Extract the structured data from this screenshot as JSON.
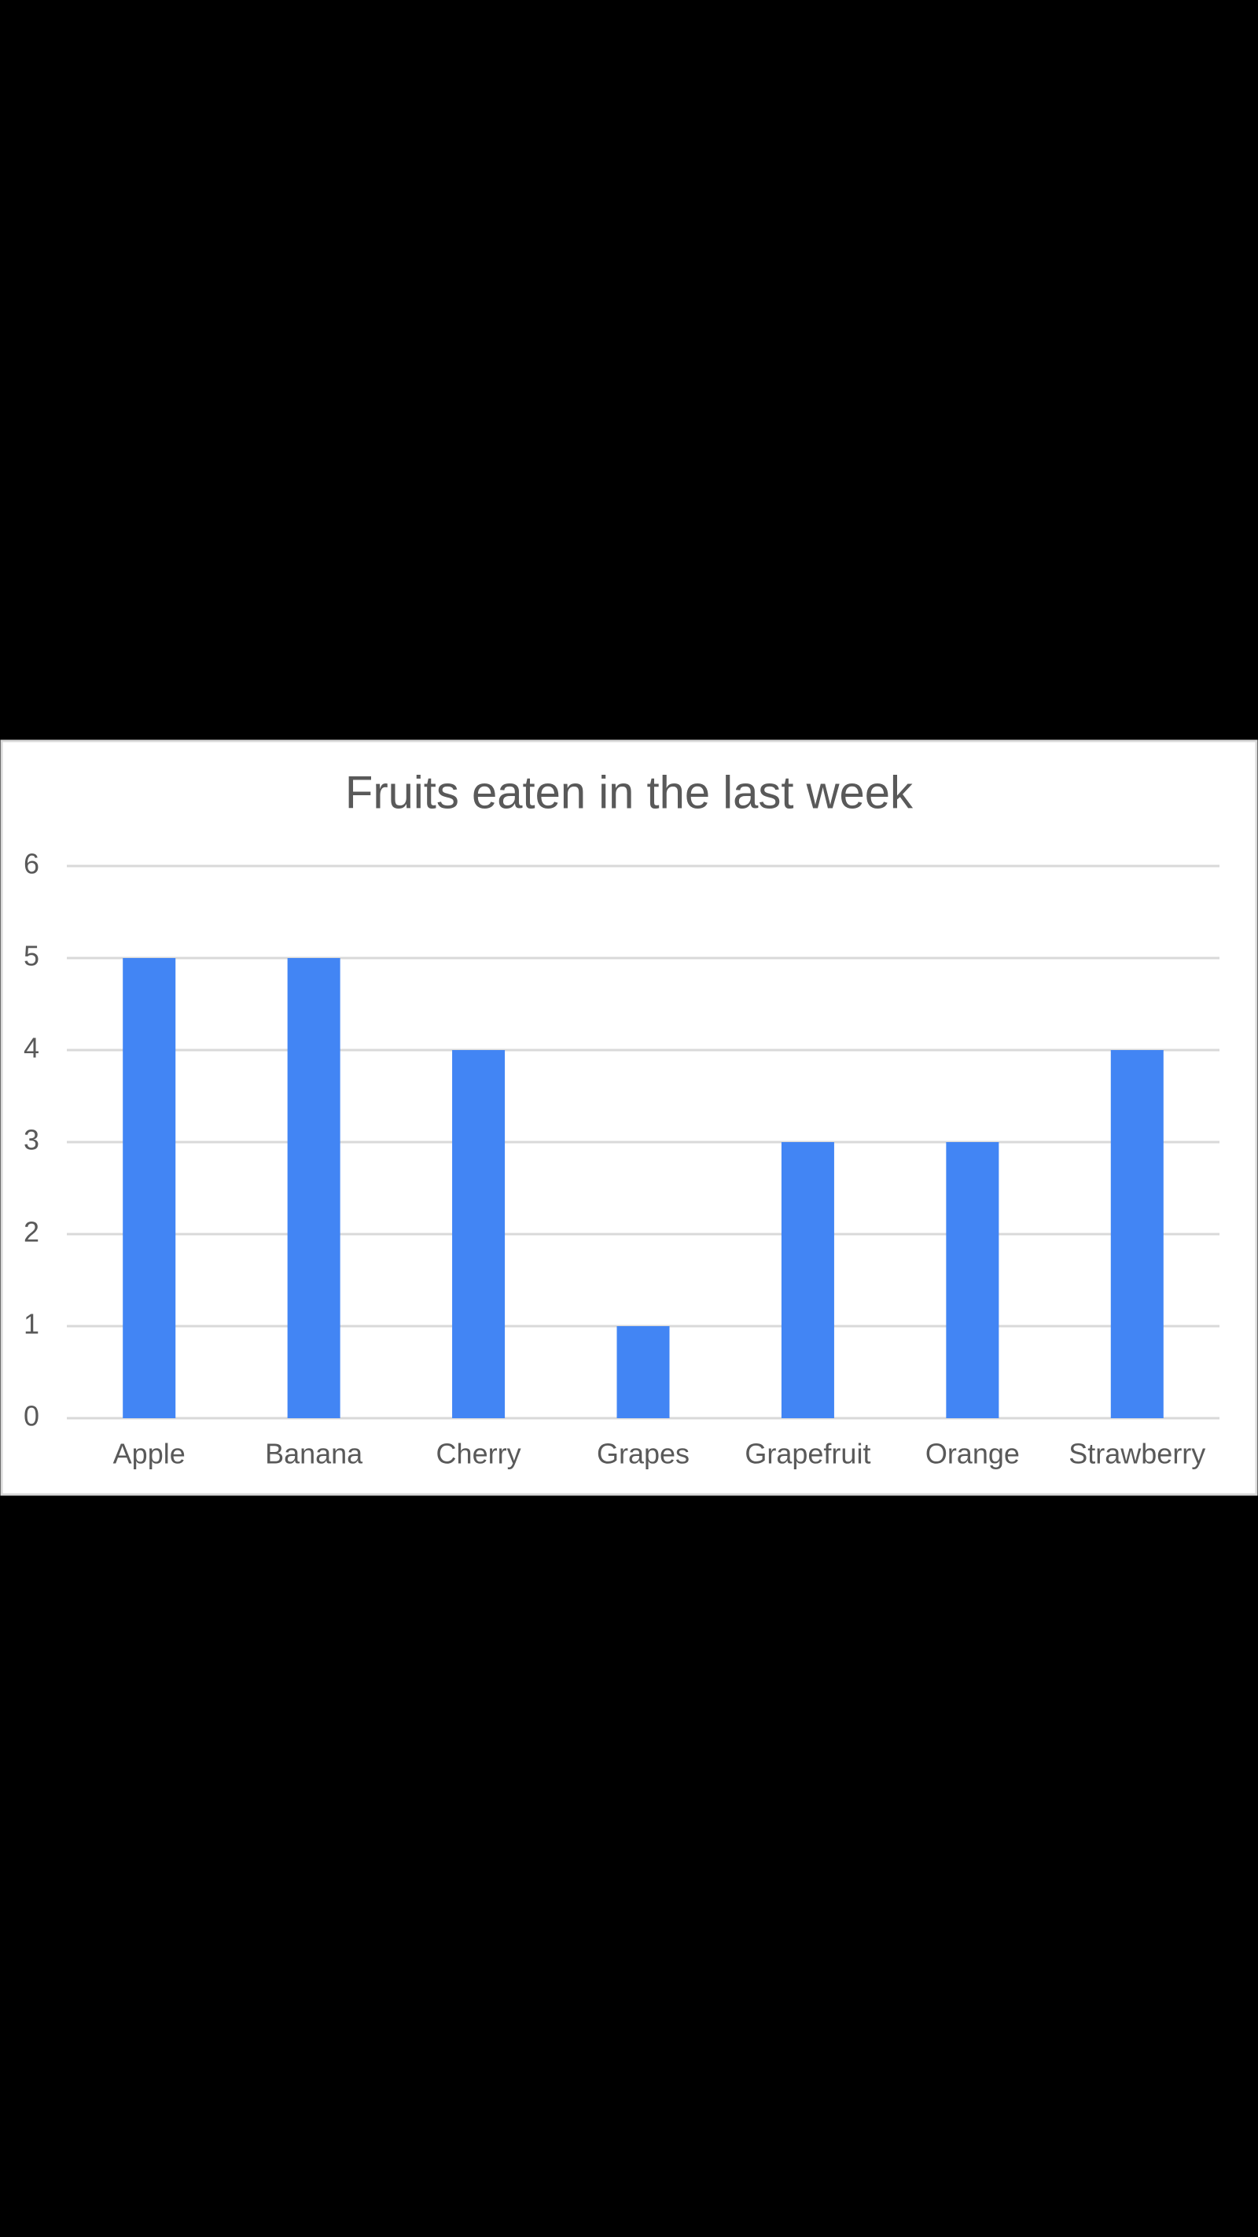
{
  "chart_data": {
    "type": "bar",
    "title": "Fruits eaten in the last week",
    "categories": [
      "Apple",
      "Banana",
      "Cherry",
      "Grapes",
      "Grapefruit",
      "Orange",
      "Strawberry"
    ],
    "values": [
      5,
      5,
      4,
      1,
      3,
      3,
      4
    ],
    "color": "#4285f4",
    "ylim": [
      0,
      6
    ],
    "yticks": [
      0,
      1,
      2,
      3,
      4,
      5,
      6
    ],
    "grid": true
  }
}
